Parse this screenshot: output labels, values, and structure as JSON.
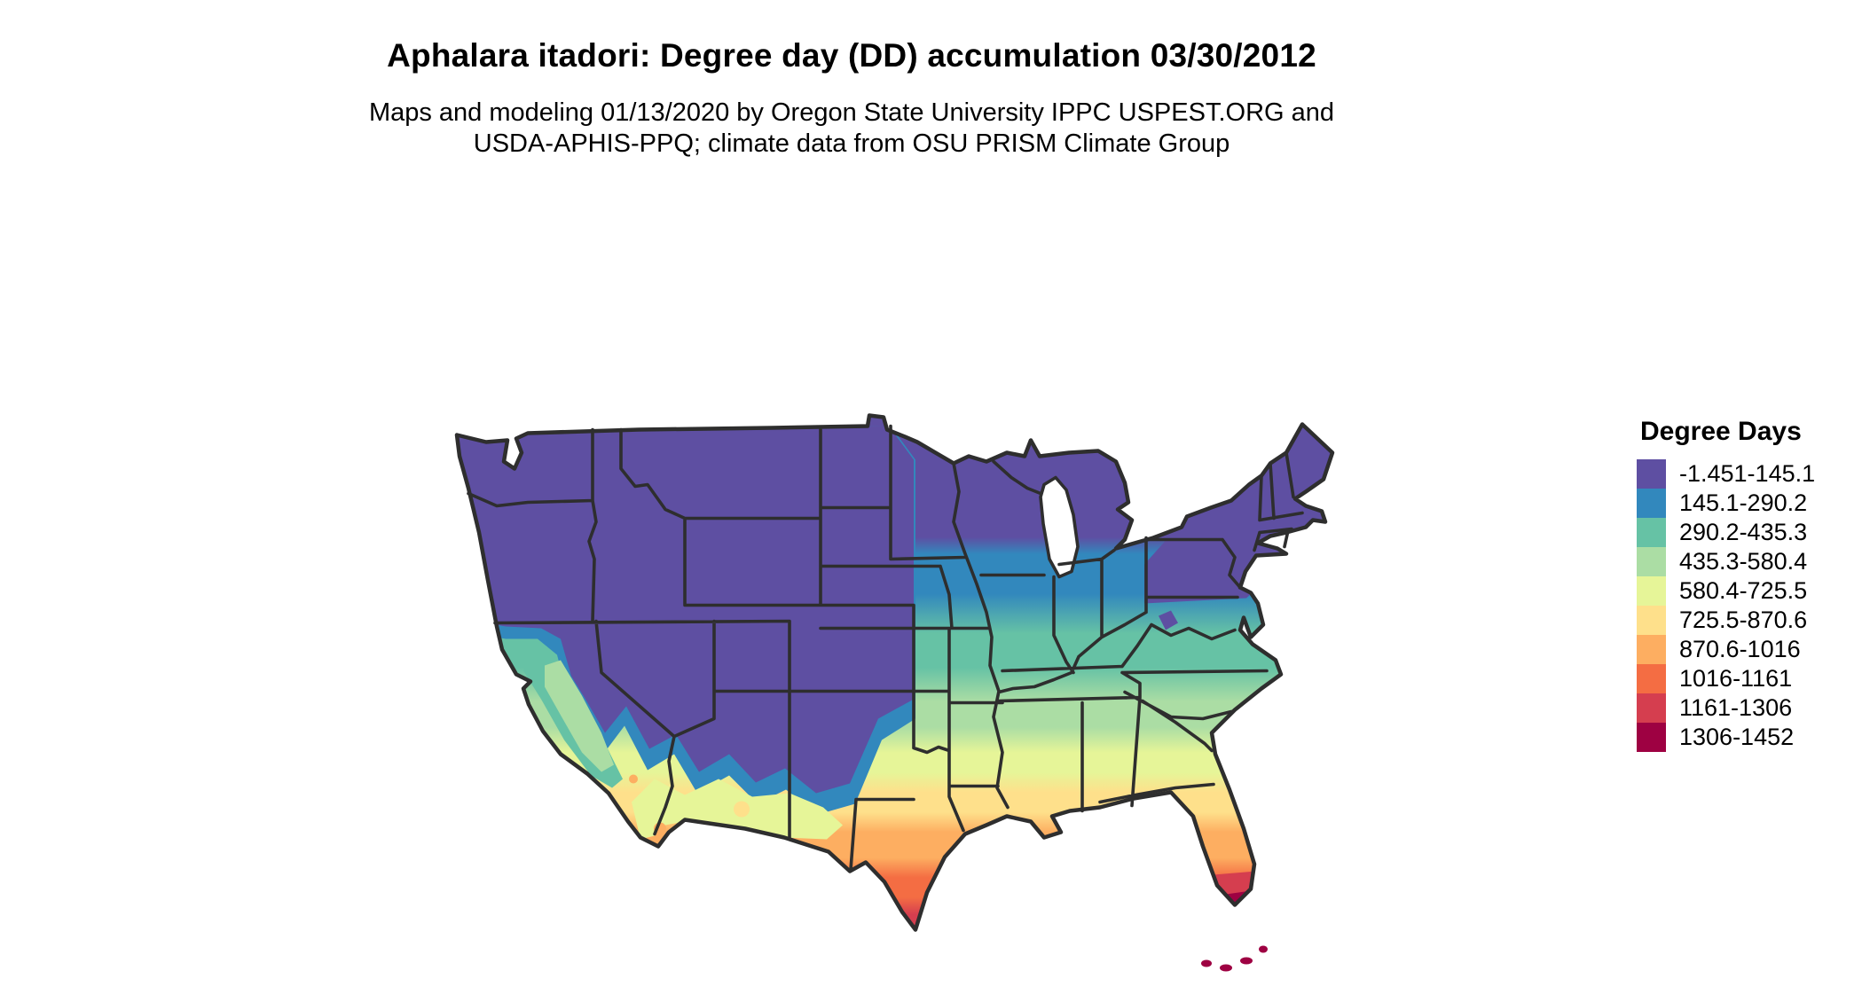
{
  "title": "Aphalara itadori: Degree day (DD) accumulation 03/30/2012",
  "subtitle_line1": "Maps and modeling 01/13/2020 by Oregon State University IPPC USPEST.ORG and",
  "subtitle_line2": "USDA-APHIS-PPQ; climate data from OSU PRISM Climate Group",
  "legend": {
    "title": "Degree Days",
    "classes": [
      {
        "label": "-1.451-145.1",
        "color": "#5e4fa2"
      },
      {
        "label": "145.1-290.2",
        "color": "#3288bd"
      },
      {
        "label": "290.2-435.3",
        "color": "#66c2a5"
      },
      {
        "label": "435.3-580.4",
        "color": "#abdda4"
      },
      {
        "label": "580.4-725.5",
        "color": "#e6f598"
      },
      {
        "label": "725.5-870.6",
        "color": "#fee08b"
      },
      {
        "label": "870.6-1016",
        "color": "#fdae61"
      },
      {
        "label": "1016-1161",
        "color": "#f46d43"
      },
      {
        "label": "1161-1306",
        "color": "#d53e4f"
      },
      {
        "label": "1306-1452",
        "color": "#9e0142"
      }
    ]
  },
  "map": {
    "region": "Contiguous United States",
    "variable": "Degree day (DD) accumulation",
    "date": "03/30/2012",
    "border_color": "#2e2e2e",
    "water_color": "#ffffff",
    "background_color": "#ffffff"
  }
}
